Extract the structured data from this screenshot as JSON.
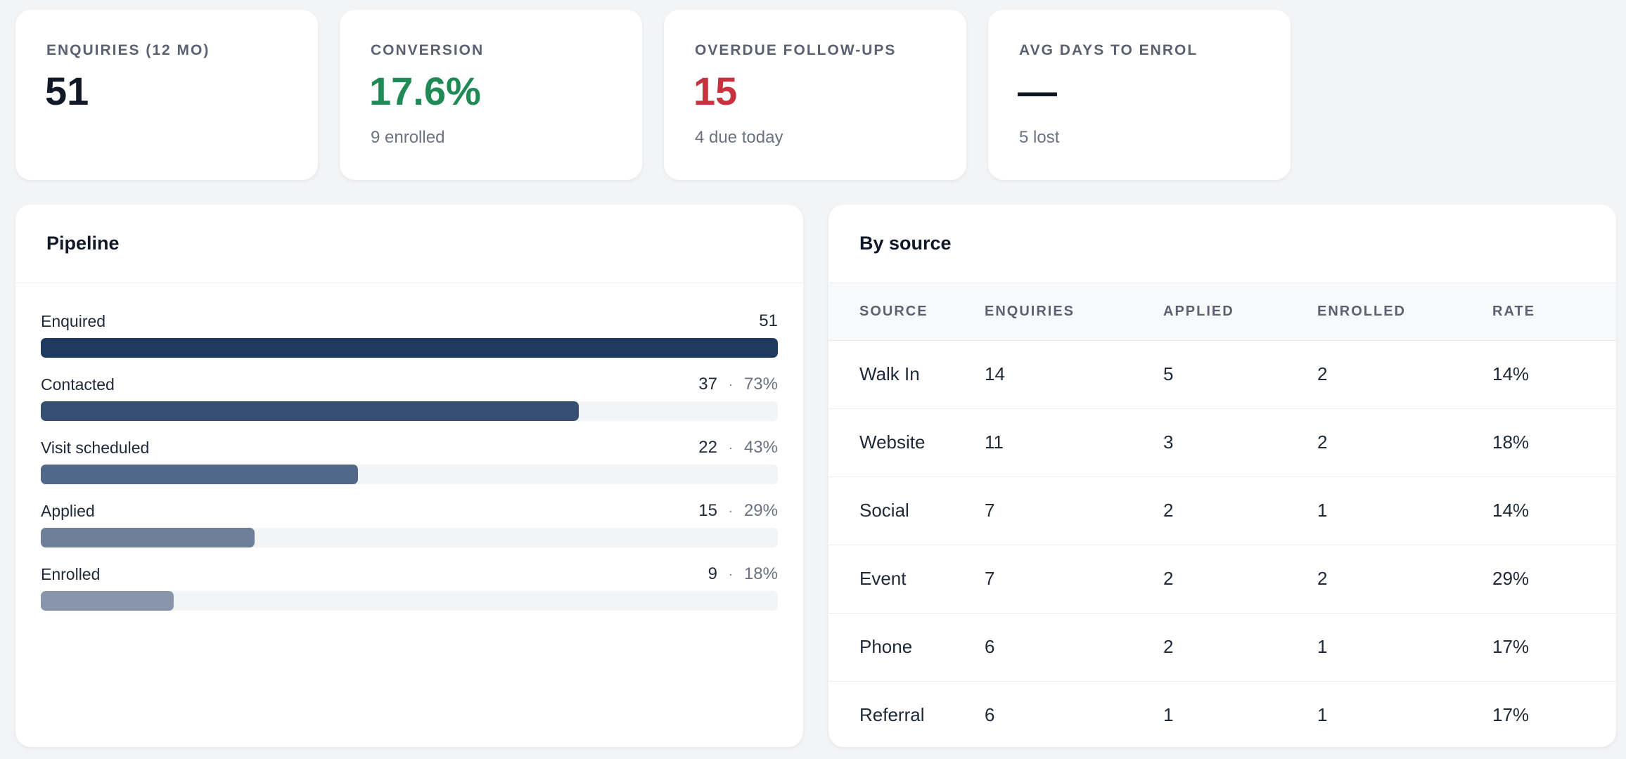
{
  "kpis": [
    {
      "label": "ENQUIRIES (12 MO)",
      "value": "51",
      "sub": "",
      "tone": "default"
    },
    {
      "label": "CONVERSION",
      "value": "17.6%",
      "sub": "9 enrolled",
      "tone": "green"
    },
    {
      "label": "OVERDUE FOLLOW-UPS",
      "value": "15",
      "sub": "4 due today",
      "tone": "red"
    },
    {
      "label": "AVG DAYS TO ENROL",
      "value": "—",
      "sub": "5 lost",
      "tone": "default"
    }
  ],
  "pipeline": {
    "title": "Pipeline",
    "dot": "·",
    "stages": [
      {
        "label": "Enquired",
        "count": "51",
        "pct": "",
        "fraction": 1.0,
        "color": "#1e3a5f"
      },
      {
        "label": "Contacted",
        "count": "37",
        "pct": "73%",
        "fraction": 0.73,
        "color": "#374f72"
      },
      {
        "label": "Visit scheduled",
        "count": "22",
        "pct": "43%",
        "fraction": 0.43,
        "color": "#51688a"
      },
      {
        "label": "Applied",
        "count": "15",
        "pct": "29%",
        "fraction": 0.29,
        "color": "#6e7f99"
      },
      {
        "label": "Enrolled",
        "count": "9",
        "pct": "18%",
        "fraction": 0.18,
        "color": "#8995aa"
      }
    ]
  },
  "by_source": {
    "title": "By source",
    "columns": [
      "SOURCE",
      "ENQUIRIES",
      "APPLIED",
      "ENROLLED",
      "RATE"
    ],
    "rows": [
      [
        "Walk In",
        "14",
        "5",
        "2",
        "14%"
      ],
      [
        "Website",
        "11",
        "3",
        "2",
        "18%"
      ],
      [
        "Social",
        "7",
        "2",
        "1",
        "14%"
      ],
      [
        "Event",
        "7",
        "2",
        "2",
        "29%"
      ],
      [
        "Phone",
        "6",
        "2",
        "1",
        "17%"
      ],
      [
        "Referral",
        "6",
        "1",
        "1",
        "17%"
      ]
    ]
  }
}
